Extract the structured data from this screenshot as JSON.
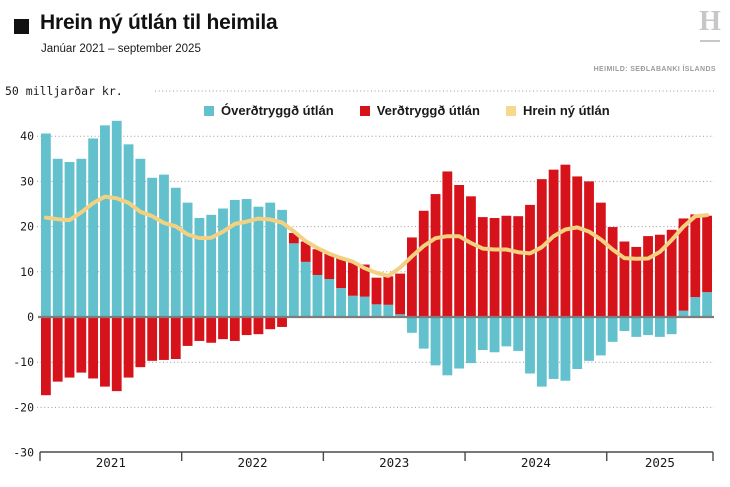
{
  "header": {
    "bullet": "■",
    "title": "Hrein ný útlán til heimila",
    "subtitle": "Janúar 2021 – september 2025",
    "logo_letter": "H",
    "source": "HEIMILD: SEÐLABANKI ÍSLANDS"
  },
  "axis": {
    "y_title": "50 milljarðar kr.",
    "y_tick_labels": [
      40,
      30,
      20,
      10,
      0,
      -10,
      -20,
      -30
    ],
    "y_gridline_values": [
      50,
      40,
      30,
      20,
      10,
      -10,
      -20
    ],
    "x_year_labels": [
      "2021",
      "2022",
      "2023",
      "2024",
      "2025"
    ],
    "months_per_year": [
      12,
      12,
      12,
      12,
      9
    ]
  },
  "colors": {
    "overdtryggd": "#62C1CC",
    "verdtryggd": "#D6131A",
    "net_line": "#F3D182",
    "zero_line": "#7d7d7d",
    "gridline": "#9b9b9b",
    "axis_line": "#4a4a4a",
    "tick_text": "#1a1a1a"
  },
  "chart_data": {
    "type": "bar",
    "title": "Hrein ný útlán til heimila",
    "subtitle": "Janúar 2021 – september 2025",
    "unit": "milljarðar kr.",
    "ylim": [
      -30,
      50
    ],
    "grid": "horizontal dotted",
    "legend_position": "top",
    "stacking": "signed; components stack when same sign, drawn from zero line",
    "months": [
      "2021-01",
      "2021-02",
      "2021-03",
      "2021-04",
      "2021-05",
      "2021-06",
      "2021-07",
      "2021-08",
      "2021-09",
      "2021-10",
      "2021-11",
      "2021-12",
      "2022-01",
      "2022-02",
      "2022-03",
      "2022-04",
      "2022-05",
      "2022-06",
      "2022-07",
      "2022-08",
      "2022-09",
      "2022-10",
      "2022-11",
      "2022-12",
      "2023-01",
      "2023-02",
      "2023-03",
      "2023-04",
      "2023-05",
      "2023-06",
      "2023-07",
      "2023-08",
      "2023-09",
      "2023-10",
      "2023-11",
      "2023-12",
      "2024-01",
      "2024-02",
      "2024-03",
      "2024-04",
      "2024-05",
      "2024-06",
      "2024-07",
      "2024-08",
      "2024-09",
      "2024-10",
      "2024-11",
      "2024-12",
      "2025-01",
      "2025-02",
      "2025-03",
      "2025-04",
      "2025-05",
      "2025-06",
      "2025-07",
      "2025-08",
      "2025-09"
    ],
    "series": [
      {
        "name": "Óverðtryggð útlán",
        "color": "#62C1CC",
        "values": [
          40.6,
          35.0,
          34.3,
          35.0,
          39.5,
          42.4,
          43.4,
          38.2,
          35.0,
          30.8,
          31.5,
          28.6,
          25.3,
          21.9,
          22.6,
          24.0,
          25.9,
          26.1,
          24.4,
          25.3,
          23.7,
          16.3,
          12.2,
          9.3,
          8.4,
          6.4,
          4.7,
          4.5,
          2.8,
          2.7,
          0.6,
          -3.5,
          -7.0,
          -10.7,
          -12.9,
          -11.4,
          -10.2,
          -7.3,
          -7.8,
          -6.5,
          -7.5,
          -12.5,
          -15.4,
          -13.7,
          -14.1,
          -11.5,
          -9.7,
          -8.5,
          -5.5,
          -3.1,
          -4.4,
          -4.0,
          -4.4,
          -3.8,
          1.4,
          4.4,
          5.5
        ]
      },
      {
        "name": "Verðtryggð útlán",
        "color": "#D6131A",
        "values": [
          -17.3,
          -14.3,
          -13.4,
          -12.3,
          -13.6,
          -15.4,
          -16.4,
          -13.4,
          -11.1,
          -9.7,
          -9.5,
          -9.3,
          -6.4,
          -5.3,
          -5.7,
          -4.9,
          -5.3,
          -4.0,
          -3.8,
          -2.7,
          -2.2,
          2.3,
          4.5,
          5.7,
          5.6,
          6.6,
          7.4,
          7.1,
          5.9,
          6.3,
          9.0,
          17.6,
          23.5,
          27.2,
          32.2,
          29.2,
          26.7,
          22.1,
          21.9,
          22.4,
          22.3,
          24.8,
          30.5,
          32.6,
          33.7,
          31.1,
          30.0,
          25.3,
          19.9,
          16.7,
          15.5,
          17.9,
          18.2,
          19.3,
          20.4,
          18.3,
          16.9
        ]
      }
    ],
    "line": {
      "name": "Hrein ný útlán",
      "color": "#F3D182",
      "definition": "sum of the two series, 3-month centered moving average"
    }
  }
}
